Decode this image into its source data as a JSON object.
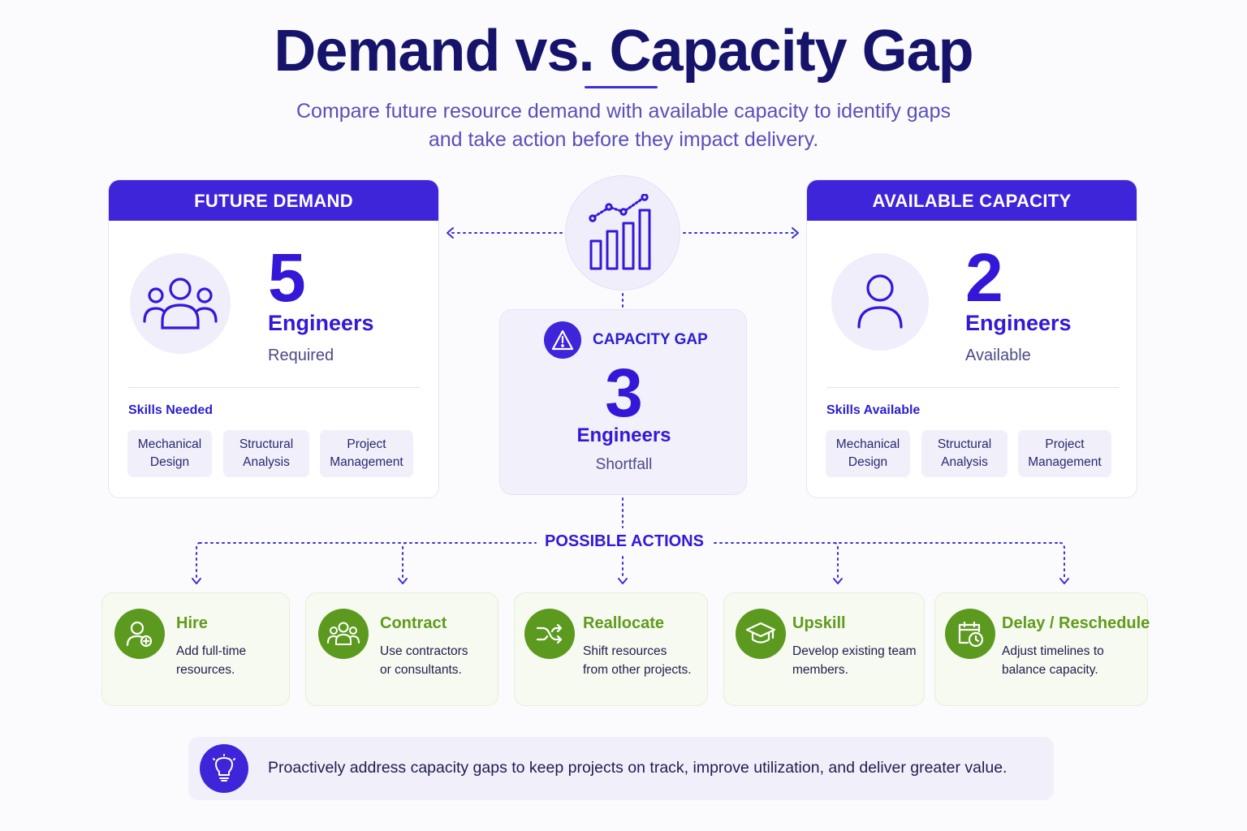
{
  "header": {
    "title": "Demand vs. Capacity Gap",
    "subtitle_line1": "Compare future resource demand with available capacity to identify gaps",
    "subtitle_line2": "and take action before they impact delivery."
  },
  "demand": {
    "heading": "FUTURE DEMAND",
    "number": "5",
    "unit": "Engineers",
    "status": "Required",
    "skills_title": "Skills Needed",
    "skills": [
      {
        "line1": "Mechanical",
        "line2": "Design"
      },
      {
        "line1": "Structural",
        "line2": "Analysis"
      },
      {
        "line1": "Project",
        "line2": "Management"
      }
    ]
  },
  "capacity": {
    "heading": "AVAILABLE CAPACITY",
    "number": "2",
    "unit": "Engineers",
    "status": "Available",
    "skills_title": "Skills Available",
    "skills": [
      {
        "line1": "Mechanical",
        "line2": "Design"
      },
      {
        "line1": "Structural",
        "line2": "Analysis"
      },
      {
        "line1": "Project",
        "line2": "Management"
      }
    ]
  },
  "gap": {
    "title": "CAPACITY GAP",
    "number": "3",
    "unit": "Engineers",
    "status": "Shortfall"
  },
  "actions": {
    "title": "POSSIBLE ACTIONS",
    "items": [
      {
        "title": "Hire",
        "line1": "Add full-time",
        "line2": "resources.",
        "icon": "user-plus-icon"
      },
      {
        "title": "Contract",
        "line1": "Use contractors",
        "line2": "or consultants.",
        "icon": "group-icon"
      },
      {
        "title": "Reallocate",
        "line1": "Shift resources",
        "line2": "from other projects.",
        "icon": "shuffle-icon"
      },
      {
        "title": "Upskill",
        "line1": "Develop existing team",
        "line2": "members.",
        "icon": "graduation-cap-icon"
      },
      {
        "title": "Delay / Reschedule",
        "line1": "Adjust timelines to",
        "line2": "balance capacity.",
        "icon": "calendar-clock-icon"
      }
    ]
  },
  "footer": {
    "text": "Proactively address capacity gaps to keep projects on track, improve utilization, and deliver greater value.",
    "icon": "lightbulb-icon"
  },
  "colors": {
    "primary": "#3f25d9",
    "accent_green": "#5c9a1f",
    "title": "#16136b"
  }
}
